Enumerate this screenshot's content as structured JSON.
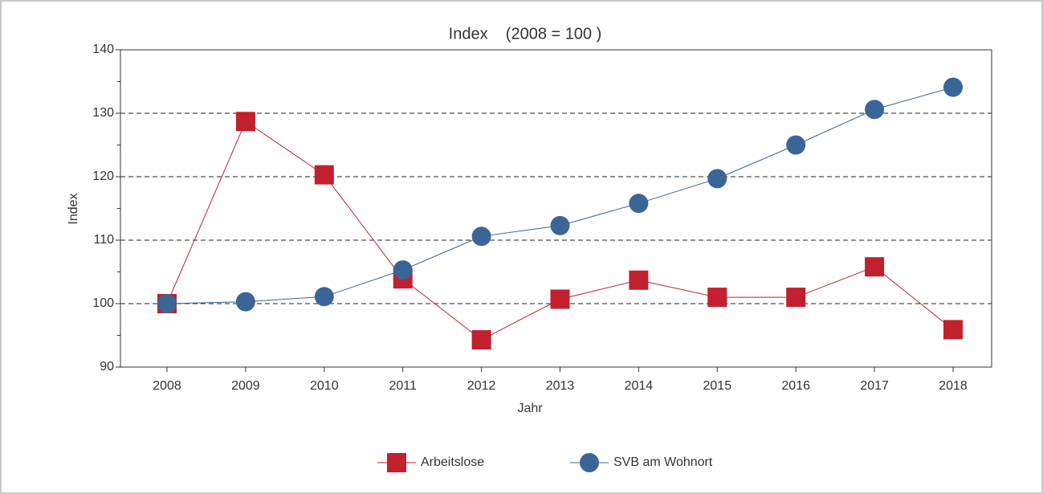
{
  "chart_data": {
    "type": "line",
    "title": "Index    (2008 = 100 )",
    "x_label": "Jahr",
    "y_label": "Index",
    "categories": [
      "2008",
      "2009",
      "2010",
      "2011",
      "2012",
      "2013",
      "2014",
      "2015",
      "2016",
      "2017",
      "2018"
    ],
    "series": [
      {
        "name": "Arbeitslose",
        "color": "#c1202f",
        "marker": "square",
        "values": [
          100,
          128.7,
          120.3,
          103.9,
          94.3,
          100.7,
          103.7,
          101,
          101,
          105.8,
          95.9
        ]
      },
      {
        "name": "SVB am Wohnort",
        "color": "#3b6597",
        "marker": "circle",
        "values": [
          100,
          100.3,
          101.1,
          105.3,
          110.6,
          112.3,
          115.8,
          119.7,
          125,
          130.6,
          134.1
        ]
      }
    ],
    "ylim": [
      90,
      140
    ],
    "yticks": [
      90,
      100,
      110,
      120,
      130,
      140
    ],
    "yticks_minor": [
      95,
      105,
      115,
      125,
      135
    ],
    "grid": true,
    "legend": "bottom"
  }
}
